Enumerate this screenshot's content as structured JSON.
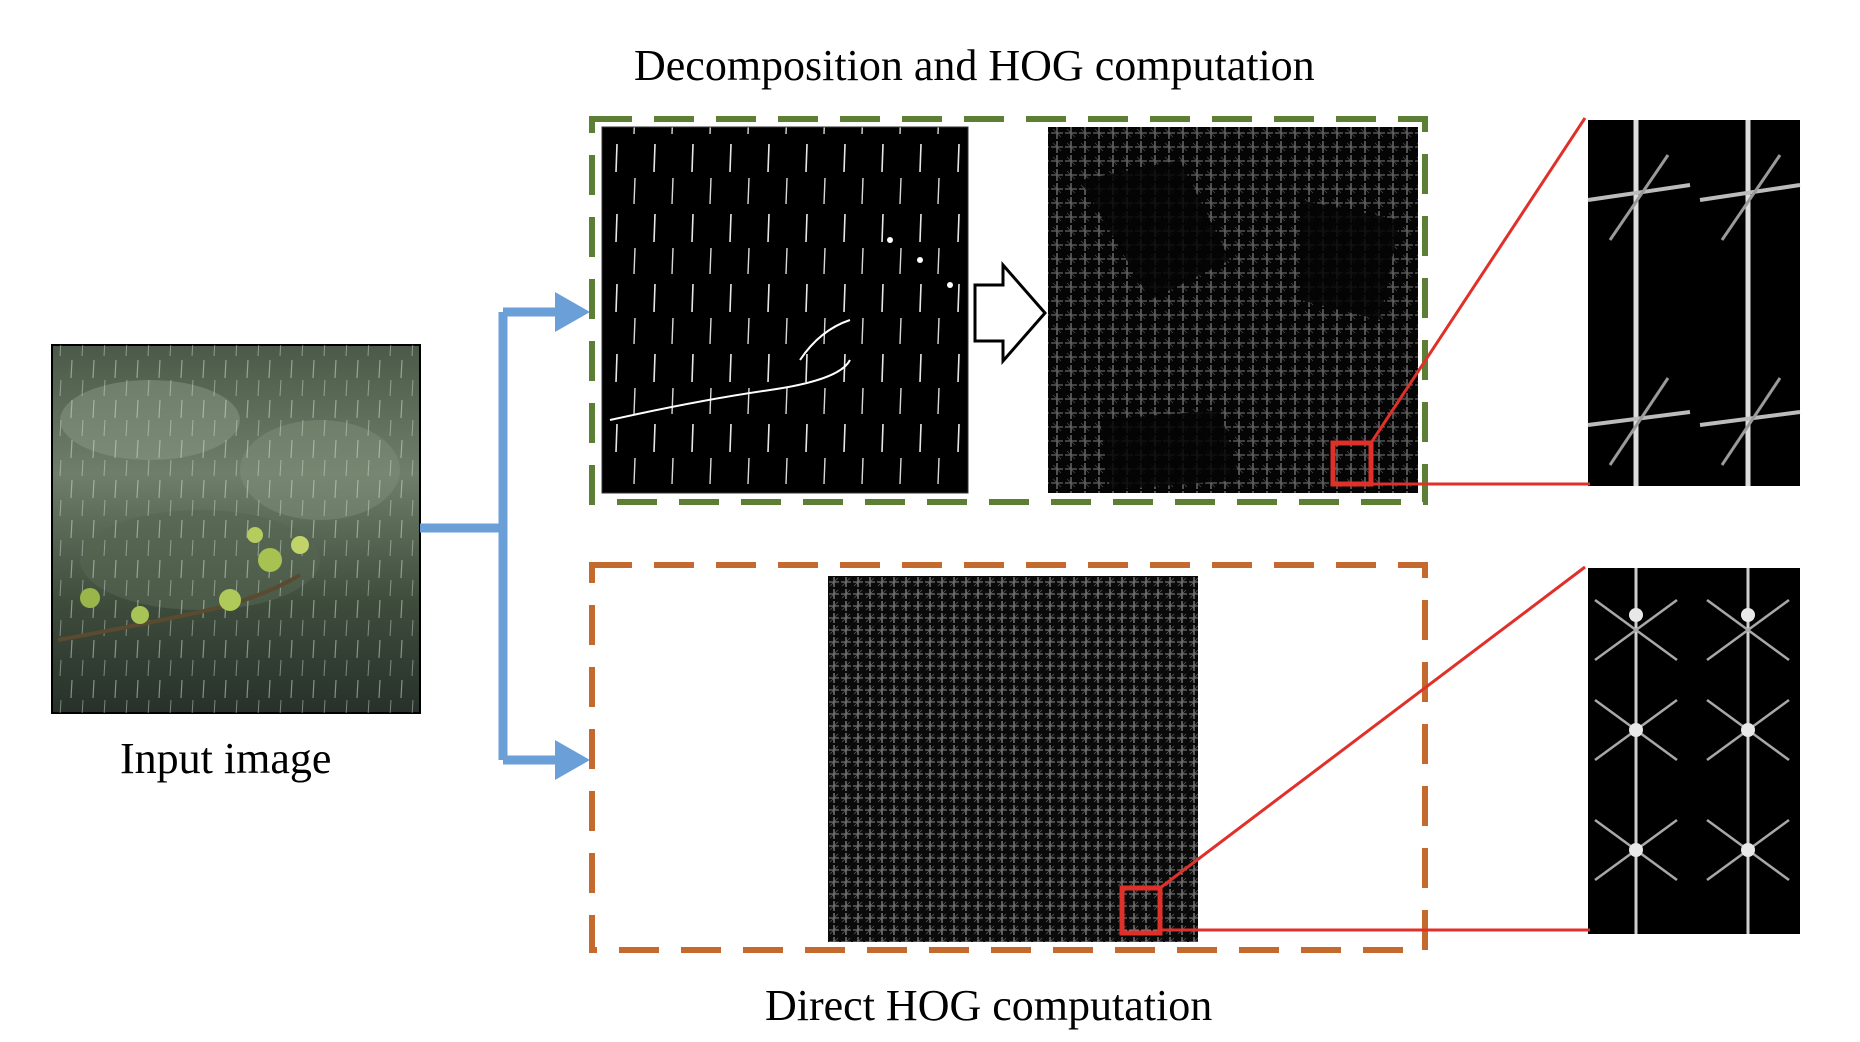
{
  "titles": {
    "top": "Decomposition and HOG computation",
    "bottom": "Direct HOG computation",
    "input": "Input image"
  },
  "colors": {
    "arrow_blue": "#6a9fd8",
    "green_box": "#5d7f35",
    "orange_box": "#c46a2e",
    "zoom_red": "#e0302a"
  },
  "icons": {
    "process_arrow": "hollow-right-arrow-icon"
  }
}
